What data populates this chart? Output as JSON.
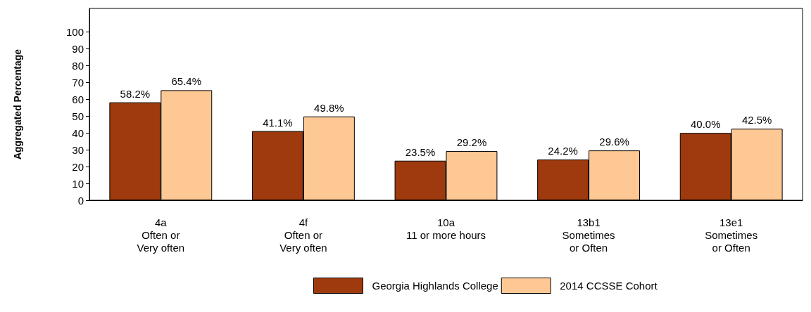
{
  "chart_data": {
    "type": "bar",
    "ylabel": "Aggregated Percentage",
    "categories": [
      "4a\nOften or\nVery often",
      "4f\nOften or\nVery often",
      "10a\n11 or more hours",
      "13b1\nSometimes\nor Often",
      "13e1\nSometimes\nor Often"
    ],
    "series": [
      {
        "name": "Georgia Highlands College",
        "color": "#9e3a0e",
        "values": [
          58.2,
          41.1,
          23.5,
          24.2,
          40.0
        ],
        "value_labels": [
          "58.2%",
          "41.1%",
          "23.5%",
          "24.2%",
          "40.0%"
        ]
      },
      {
        "name": "2014 CCSSE Cohort",
        "color": "#fdc894",
        "values": [
          65.4,
          49.8,
          29.2,
          29.6,
          42.5
        ],
        "value_labels": [
          "65.4%",
          "49.8%",
          "29.2%",
          "29.6%",
          "42.5%"
        ]
      }
    ],
    "ylim": [
      0,
      114
    ],
    "yticks": [
      0,
      10,
      20,
      30,
      40,
      50,
      60,
      70,
      80,
      90,
      100
    ],
    "grid": false,
    "legend": "bottom"
  }
}
